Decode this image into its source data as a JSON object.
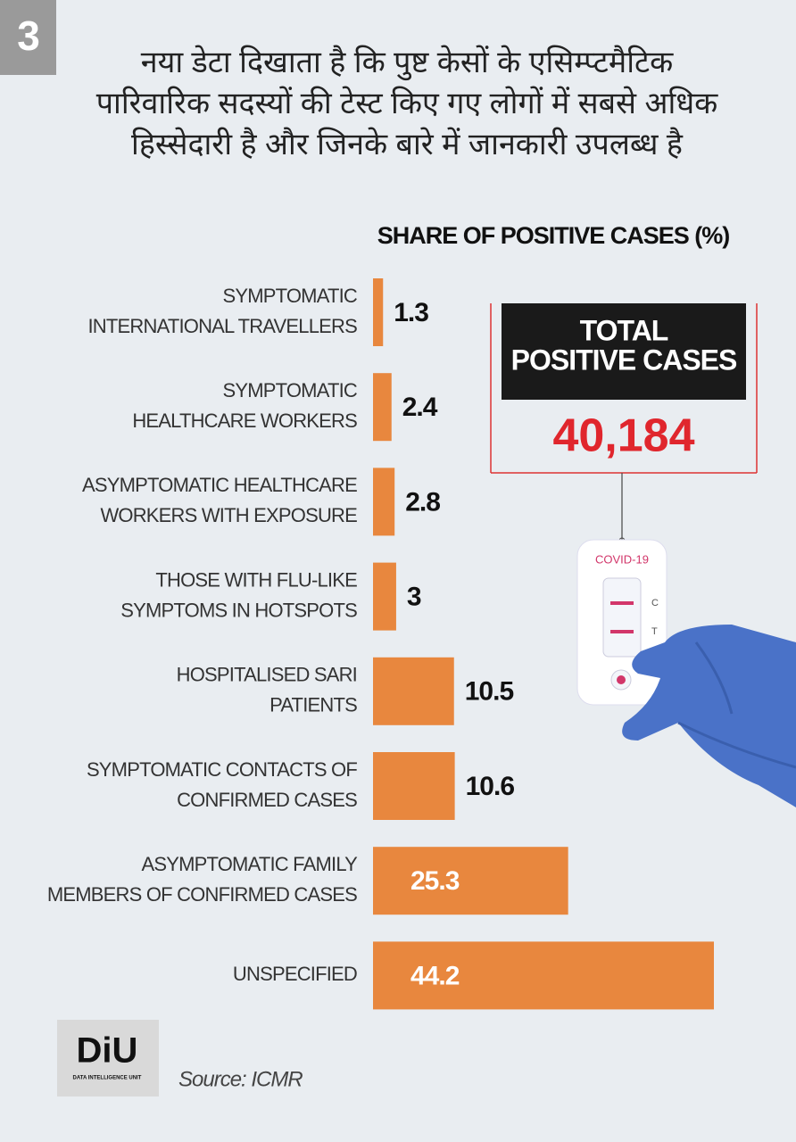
{
  "badge": "3",
  "headline": [
    "नया डेटा दिखाता है कि पुष्ट केसों के एसिम्प्टमैटिक",
    "पारिवारिक सदस्यों की टेस्ट किए गए लोगों में सबसे अधिक",
    "हिस्सेदारी है और जिनके बारे में जानकारी उपलब्ध है"
  ],
  "chart_data": {
    "type": "hbar",
    "title": "SHARE OF POSITIVE CASES (%)",
    "categories": [
      [
        "SYMPTOMATIC",
        "INTERNATIONAL TRAVELLERS"
      ],
      [
        "SYMPTOMATIC",
        "HEALTHCARE WORKERS"
      ],
      [
        "ASYMPTOMATIC HEALTHCARE",
        "WORKERS WITH EXPOSURE"
      ],
      [
        "THOSE WITH FLU-LIKE",
        "SYMPTOMS IN HOTSPOTS"
      ],
      [
        "HOSPITALISED SARI",
        "PATIENTS"
      ],
      [
        "SYMPTOMATIC CONTACTS OF",
        "CONFIRMED CASES"
      ],
      [
        "ASYMPTOMATIC FAMILY",
        "MEMBERS OF CONFIRMED CASES"
      ],
      [
        "UNSPECIFIED"
      ]
    ],
    "values": [
      1.3,
      2.4,
      2.8,
      3,
      10.5,
      10.6,
      25.3,
      44.2
    ],
    "color": "#e8873e"
  },
  "callout": {
    "label": [
      "TOTAL",
      "POSITIVE CASES"
    ],
    "value": "40,184"
  },
  "illustration": {
    "kit_label": "COVID-19",
    "marks": [
      "C",
      "T"
    ]
  },
  "logo": {
    "name": "DiU",
    "subtitle": "DATA INTELLIGENCE UNIT"
  },
  "source": "Source: ICMR"
}
